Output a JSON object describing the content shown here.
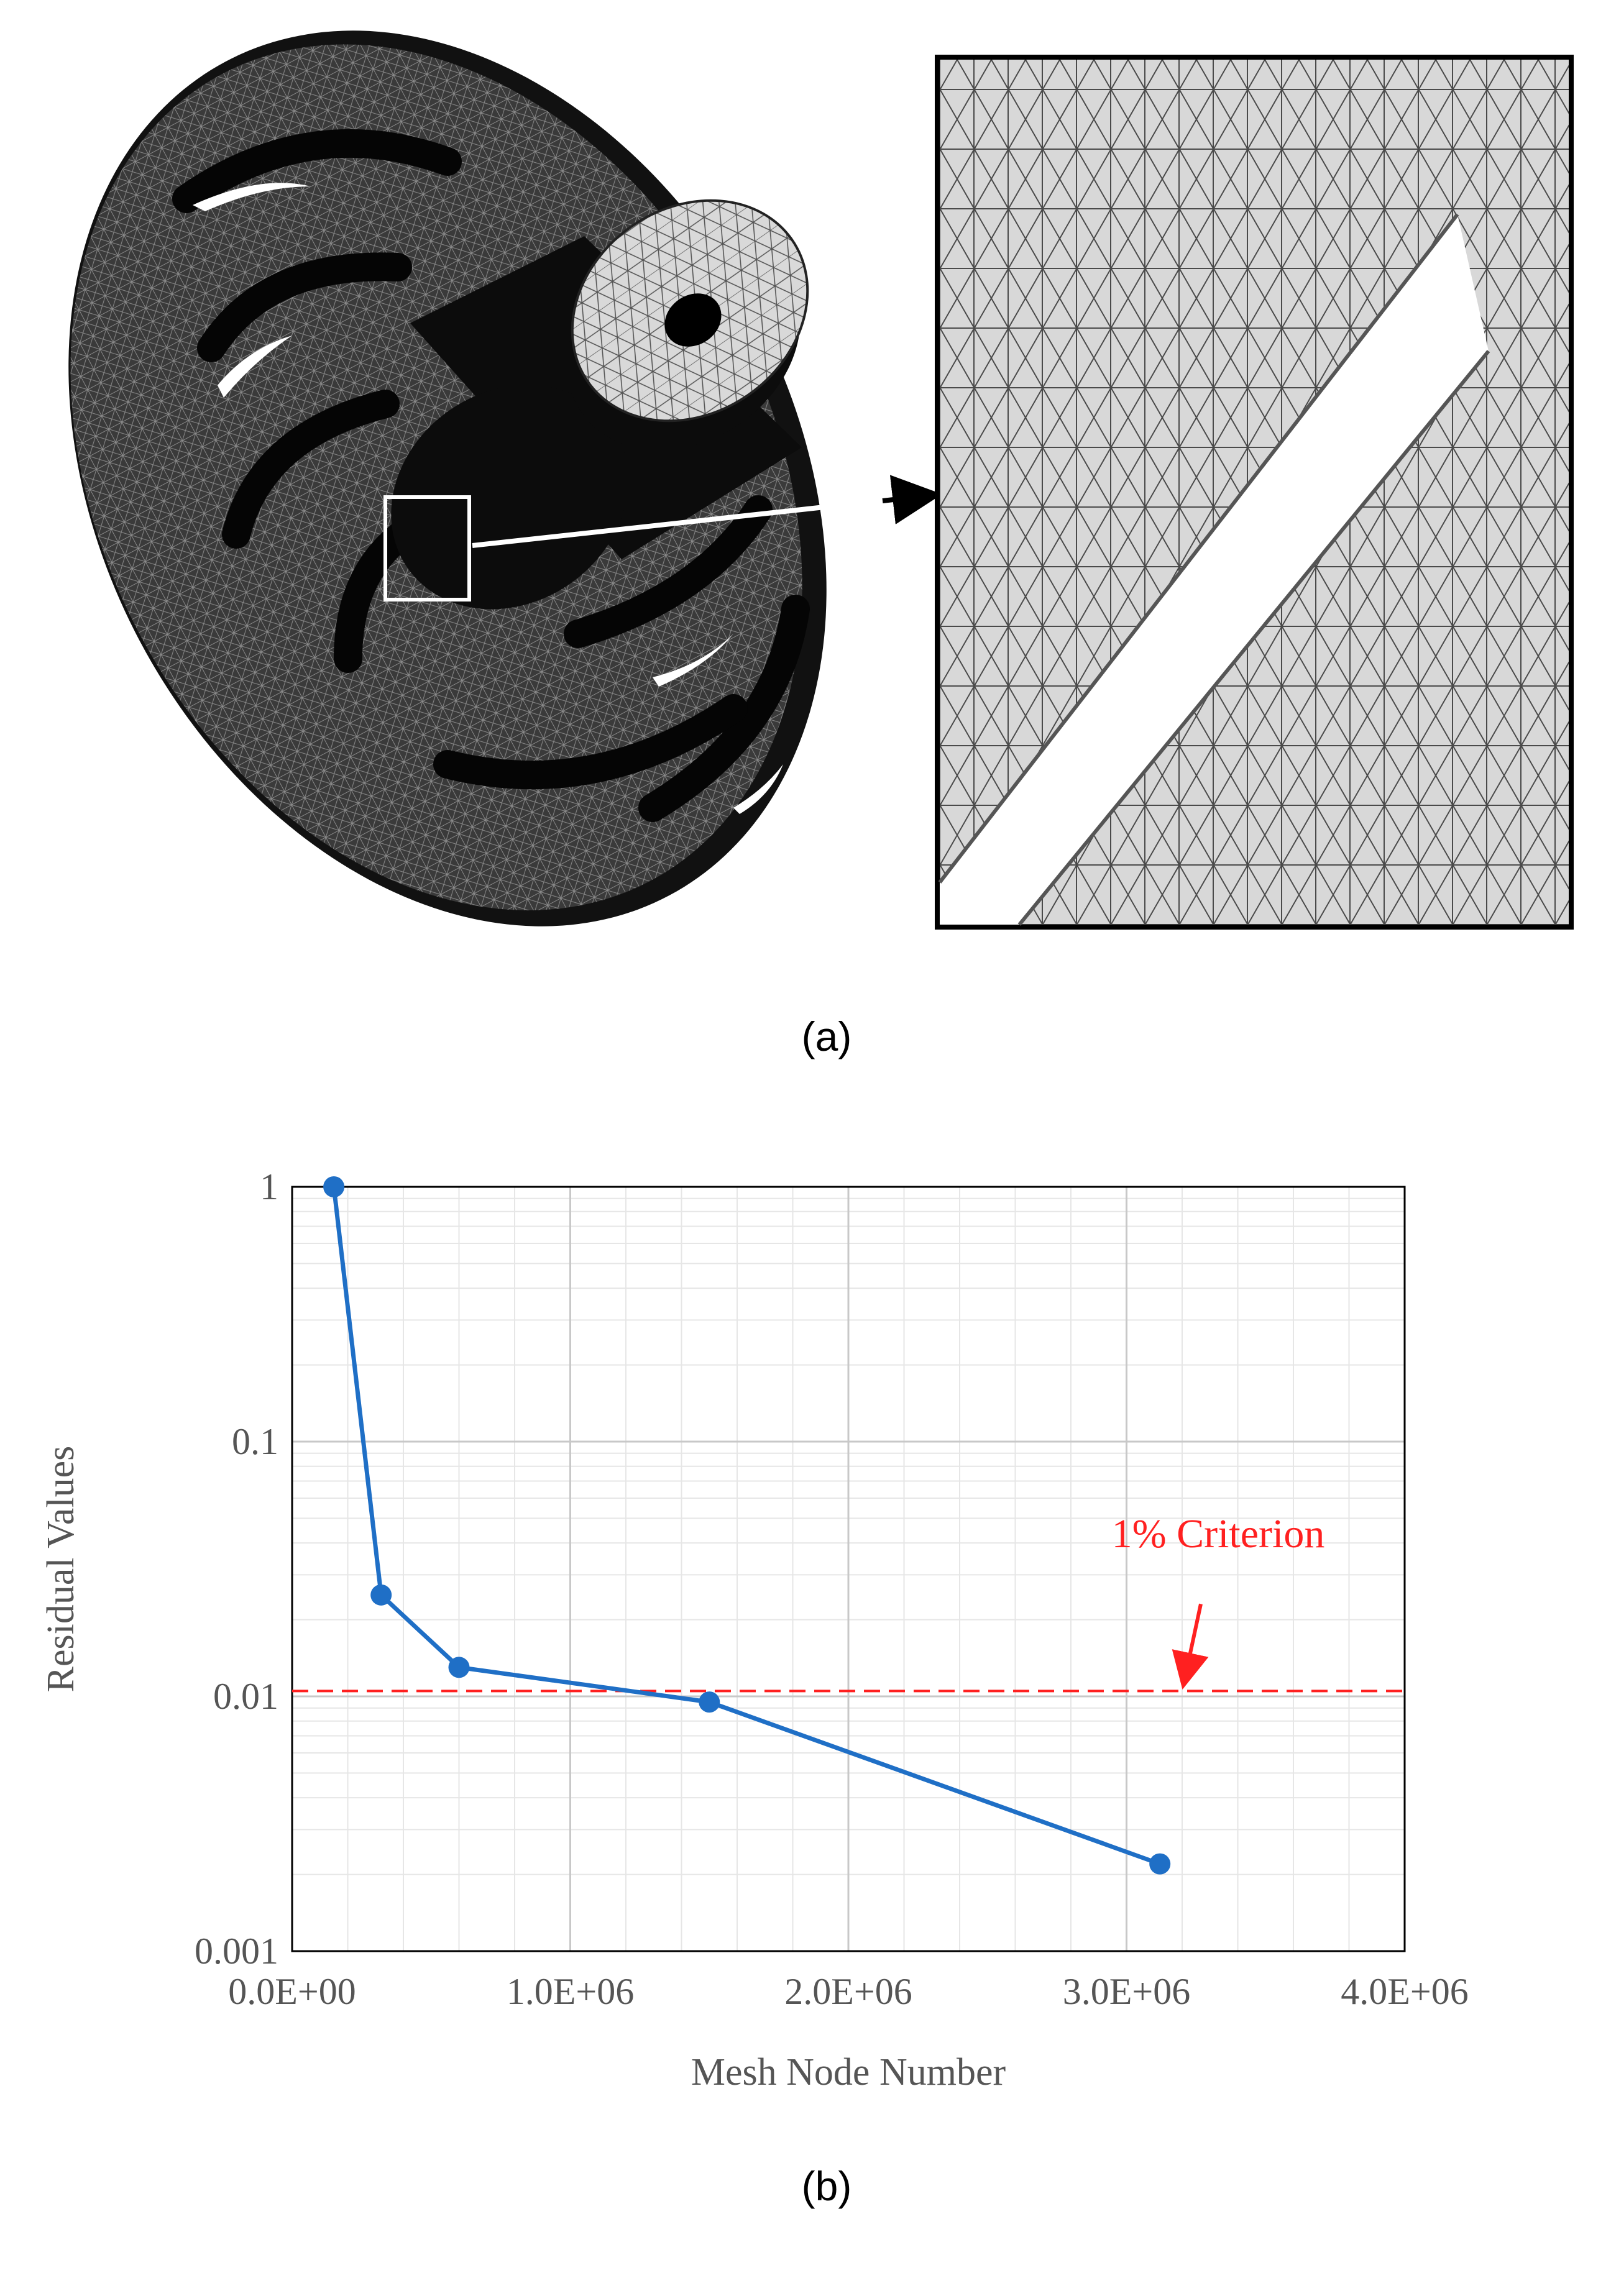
{
  "panels": {
    "a_label": "(a)",
    "b_label": "(b)"
  },
  "colors": {
    "series": "#1f6fc6",
    "criterion": "#ff2020",
    "grid_major": "#c8c8c8",
    "grid_minor": "#e6e6e6"
  },
  "chart_data": {
    "type": "line",
    "title": "",
    "xlabel": "Mesh Node Number",
    "ylabel": "Residual Values",
    "xscale": "linear",
    "yscale": "log",
    "xlim": [
      0,
      4000000
    ],
    "ylim": [
      0.001,
      1
    ],
    "xticks": [
      0,
      1000000,
      2000000,
      3000000,
      4000000
    ],
    "xtick_labels": [
      "0.0E+00",
      "1.0E+06",
      "2.0E+06",
      "3.0E+06",
      "4.0E+06"
    ],
    "yticks": [
      0.001,
      0.01,
      0.1,
      1
    ],
    "ytick_labels": [
      "0.001",
      "0.01",
      "0.1",
      "1"
    ],
    "grid": true,
    "series": [
      {
        "name": "Residual",
        "x": [
          150000,
          320000,
          600000,
          1500000,
          3120000
        ],
        "y": [
          1.0,
          0.025,
          0.013,
          0.0095,
          0.0022
        ]
      }
    ],
    "reference_lines": [
      {
        "orientation": "horizontal",
        "value": 0.0105,
        "style": "dashed"
      }
    ],
    "annotations": [
      {
        "text": "1% Criterion",
        "points_to_x": 3200000,
        "points_to_y": 0.0105
      }
    ]
  }
}
